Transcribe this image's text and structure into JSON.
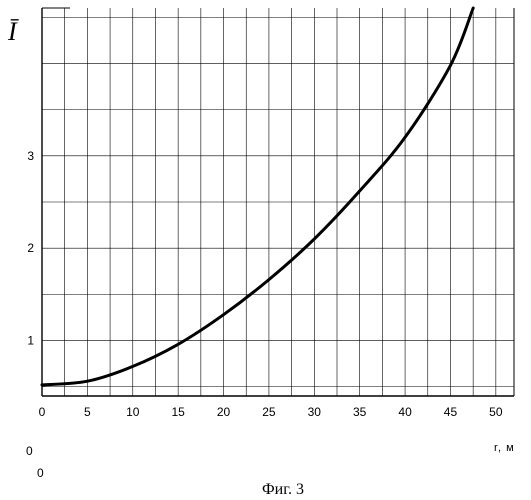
{
  "chart_data": {
    "type": "line",
    "title": "",
    "ylabel": "Ī",
    "xlabel": "r, м",
    "xlim": [
      0,
      52
    ],
    "ylim": [
      0.4,
      4.6
    ],
    "x_ticks": [
      0,
      5,
      10,
      15,
      20,
      25,
      30,
      35,
      40,
      45,
      50
    ],
    "x_tick_labels": [
      "0",
      "5",
      "10",
      "15",
      "20",
      "25",
      "30",
      "35",
      "40",
      "45",
      "50"
    ],
    "y_ticks": [
      1,
      2,
      3
    ],
    "y_tick_labels": [
      "1",
      "2",
      "3"
    ],
    "grid": true,
    "series": [
      {
        "x": [
          0,
          5,
          10,
          15,
          20,
          25,
          30,
          35,
          40,
          45,
          47.5
        ],
        "y": [
          0.52,
          0.56,
          0.72,
          0.96,
          1.28,
          1.66,
          2.1,
          2.62,
          3.2,
          3.98,
          4.6
        ]
      }
    ]
  },
  "corner_labels": [
    "0",
    "0"
  ],
  "caption": "Фиг. 3",
  "colors": {
    "line": "#000000",
    "grid": "#000000",
    "background": "#ffffff"
  }
}
